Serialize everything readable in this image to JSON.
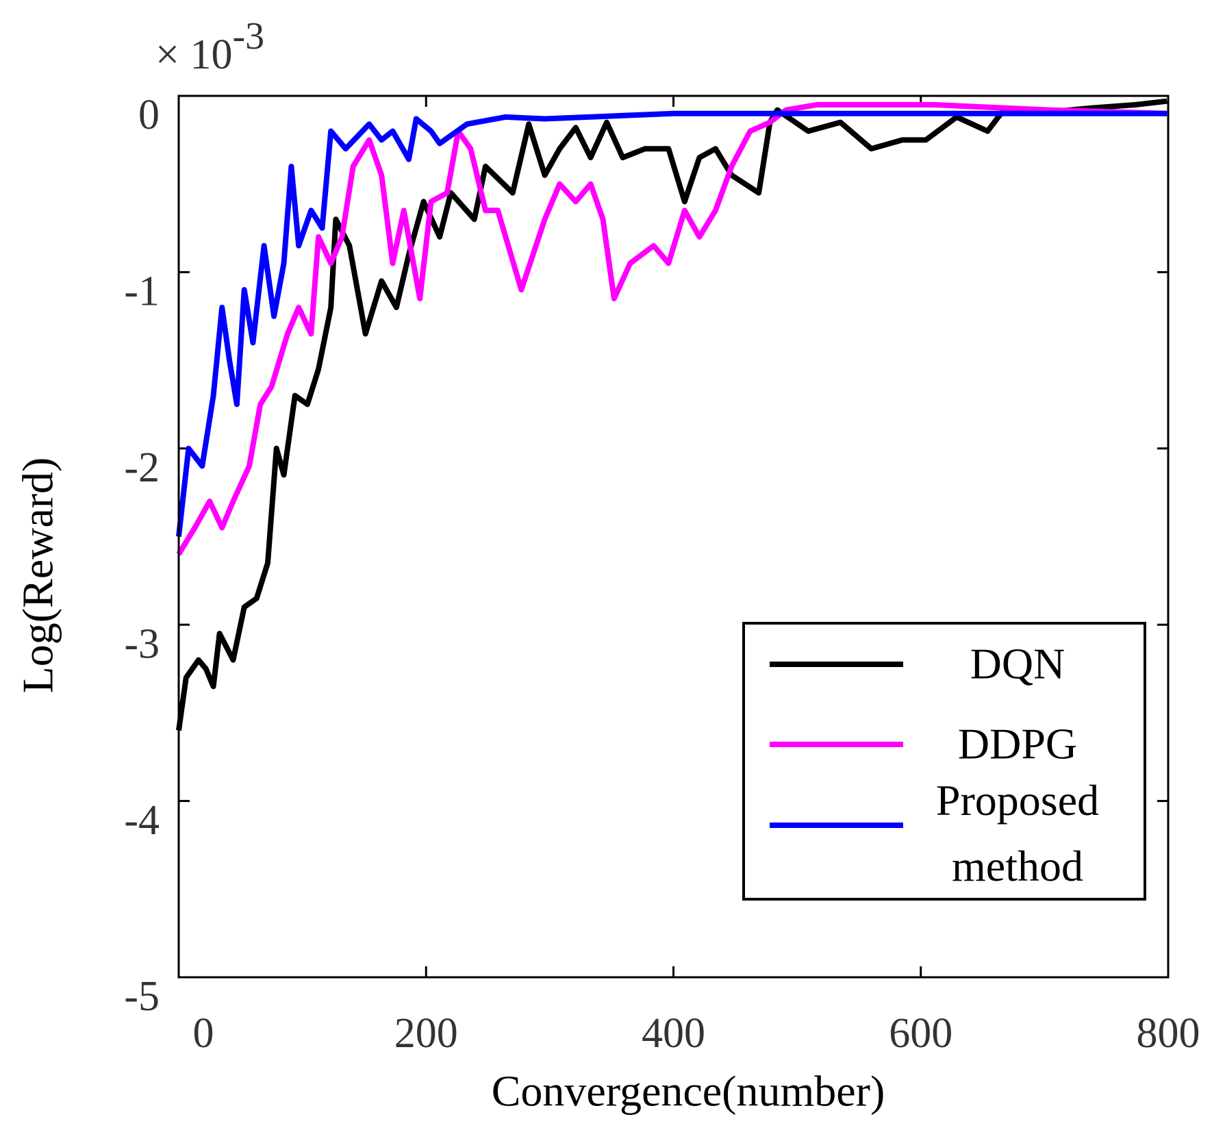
{
  "chart_data": {
    "type": "line",
    "xlabel": "Convergence(number)",
    "ylabel": "Log(Reward)",
    "multiplier_base": "× 10",
    "multiplier_exponent": "-3",
    "xlim": [
      0,
      800
    ],
    "xticks": [
      0,
      200,
      400,
      600,
      800
    ],
    "ylim": [
      -5,
      0
    ],
    "yticks": [
      -5,
      -4,
      -3,
      -2,
      -1,
      0
    ],
    "legend": "lower right",
    "series": [
      {
        "name": "DQN",
        "color": "#000000",
        "x": [
          0,
          6,
          16,
          22,
          28,
          33,
          44,
          53,
          63,
          72,
          79,
          85,
          94,
          104,
          113,
          123,
          127,
          138,
          151,
          164,
          176,
          186,
          198,
          211,
          220,
          239,
          248,
          270,
          283,
          296,
          308,
          321,
          333,
          346,
          359,
          377,
          396,
          409,
          421,
          434,
          447,
          469,
          478,
          484,
          509,
          535,
          560,
          585,
          604,
          629,
          654,
          667,
          692,
          736,
          774,
          799
        ],
        "values": [
          -3.6,
          -3.3,
          -3.2,
          -3.25,
          -3.35,
          -3.05,
          -3.2,
          -2.9,
          -2.85,
          -2.65,
          -2.0,
          -2.15,
          -1.7,
          -1.75,
          -1.55,
          -1.2,
          -0.7,
          -0.85,
          -1.35,
          -1.05,
          -1.2,
          -0.9,
          -0.6,
          -0.8,
          -0.55,
          -0.7,
          -0.4,
          -0.55,
          -0.16,
          -0.45,
          -0.3,
          -0.18,
          -0.35,
          -0.15,
          -0.35,
          -0.3,
          -0.3,
          -0.6,
          -0.35,
          -0.3,
          -0.45,
          -0.55,
          -0.15,
          -0.08,
          -0.2,
          -0.15,
          -0.3,
          -0.25,
          -0.25,
          -0.12,
          -0.2,
          -0.08,
          -0.1,
          -0.07,
          -0.05,
          -0.03
        ]
      },
      {
        "name": "DDPG",
        "color": "#ff00ff",
        "x": [
          0,
          13,
          25,
          35,
          44,
          57,
          66,
          75,
          88,
          97,
          107,
          113,
          123,
          132,
          141,
          154,
          164,
          173,
          182,
          195,
          204,
          217,
          226,
          236,
          248,
          258,
          277,
          296,
          308,
          321,
          333,
          343,
          352,
          365,
          384,
          396,
          409,
          421,
          434,
          447,
          462,
          478,
          491,
          516,
          610,
          704,
          799
        ],
        "values": [
          -2.6,
          -2.45,
          -2.3,
          -2.45,
          -2.3,
          -2.1,
          -1.75,
          -1.65,
          -1.35,
          -1.2,
          -1.35,
          -0.8,
          -0.95,
          -0.8,
          -0.4,
          -0.25,
          -0.45,
          -0.95,
          -0.65,
          -1.15,
          -0.6,
          -0.55,
          -0.2,
          -0.3,
          -0.65,
          -0.65,
          -1.1,
          -0.7,
          -0.5,
          -0.6,
          -0.5,
          -0.7,
          -1.15,
          -0.95,
          -0.85,
          -0.95,
          -0.65,
          -0.8,
          -0.65,
          -0.4,
          -0.2,
          -0.15,
          -0.08,
          -0.05,
          -0.05,
          -0.08,
          -0.1
        ]
      },
      {
        "name": "Proposed method",
        "color": "#0000ff",
        "x": [
          0,
          8,
          19,
          28,
          35,
          41,
          47,
          53,
          60,
          69,
          77,
          85,
          91,
          97,
          107,
          116,
          123,
          135,
          154,
          164,
          173,
          186,
          192,
          204,
          211,
          233,
          264,
          296,
          400,
          500,
          600,
          700,
          799
        ],
        "values": [
          -2.5,
          -2.0,
          -2.1,
          -1.7,
          -1.2,
          -1.5,
          -1.75,
          -1.1,
          -1.4,
          -0.85,
          -1.25,
          -0.95,
          -0.4,
          -0.85,
          -0.65,
          -0.75,
          -0.2,
          -0.3,
          -0.16,
          -0.25,
          -0.2,
          -0.36,
          -0.13,
          -0.2,
          -0.27,
          -0.16,
          -0.12,
          -0.13,
          -0.1,
          -0.1,
          -0.1,
          -0.1,
          -0.1
        ]
      }
    ]
  }
}
